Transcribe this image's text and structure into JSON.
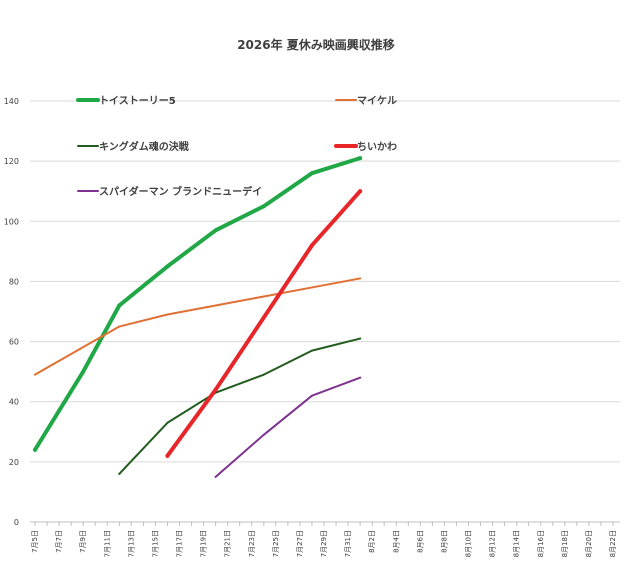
{
  "chart_data": {
    "type": "line",
    "title": "2026年 夏休み映画興収推移",
    "xlabel": "",
    "ylabel": "",
    "ylim": [
      0,
      140
    ],
    "yticks": [
      0,
      20,
      40,
      60,
      80,
      100,
      120,
      140
    ],
    "grid": "horizontal",
    "legend_position": "top",
    "categories": [
      "7月5日",
      "7月7日",
      "7月9日",
      "7月11日",
      "7月13日",
      "7月15日",
      "7月17日",
      "7月19日",
      "7月21日",
      "7月23日",
      "7月25日",
      "7月27日",
      "7月29日",
      "7月31日",
      "8月2日",
      "8月4日",
      "8月6日",
      "8月8日",
      "8月10日",
      "8月12日",
      "8月14日",
      "8月16日",
      "8月18日",
      "8月20日",
      "8月22日"
    ],
    "series": [
      {
        "name": "トイストーリー5",
        "color": "#21a846",
        "width": 4,
        "points": [
          [
            0,
            24
          ],
          [
            4,
            50
          ],
          [
            7,
            72
          ],
          [
            11,
            85
          ],
          [
            15,
            97
          ],
          [
            19,
            105
          ],
          [
            23,
            116
          ],
          [
            27,
            121
          ]
        ]
      },
      {
        "name": "マイケル",
        "color": "#e07034",
        "width": 2,
        "points": [
          [
            0,
            49
          ],
          [
            7,
            65
          ],
          [
            11,
            69
          ],
          [
            15,
            72
          ],
          [
            19,
            75
          ],
          [
            23,
            78
          ],
          [
            27,
            81
          ]
        ]
      },
      {
        "name": "キングダム魂の決戦",
        "color": "#215c1e",
        "width": 2,
        "points": [
          [
            7,
            16
          ],
          [
            11,
            33
          ],
          [
            15,
            43
          ],
          [
            19,
            49
          ],
          [
            23,
            57
          ],
          [
            27,
            61
          ]
        ]
      },
      {
        "name": "ちいかわ",
        "color": "#e8262a",
        "width": 4,
        "points": [
          [
            11,
            22
          ],
          [
            15,
            44
          ],
          [
            23,
            92
          ],
          [
            27,
            110
          ]
        ]
      },
      {
        "name": "スパイダーマン ブランドニューデイ",
        "color": "#7f3390",
        "width": 2,
        "points": [
          [
            15,
            15
          ],
          [
            19,
            29
          ],
          [
            23,
            42
          ],
          [
            27,
            48
          ]
        ]
      }
    ]
  }
}
